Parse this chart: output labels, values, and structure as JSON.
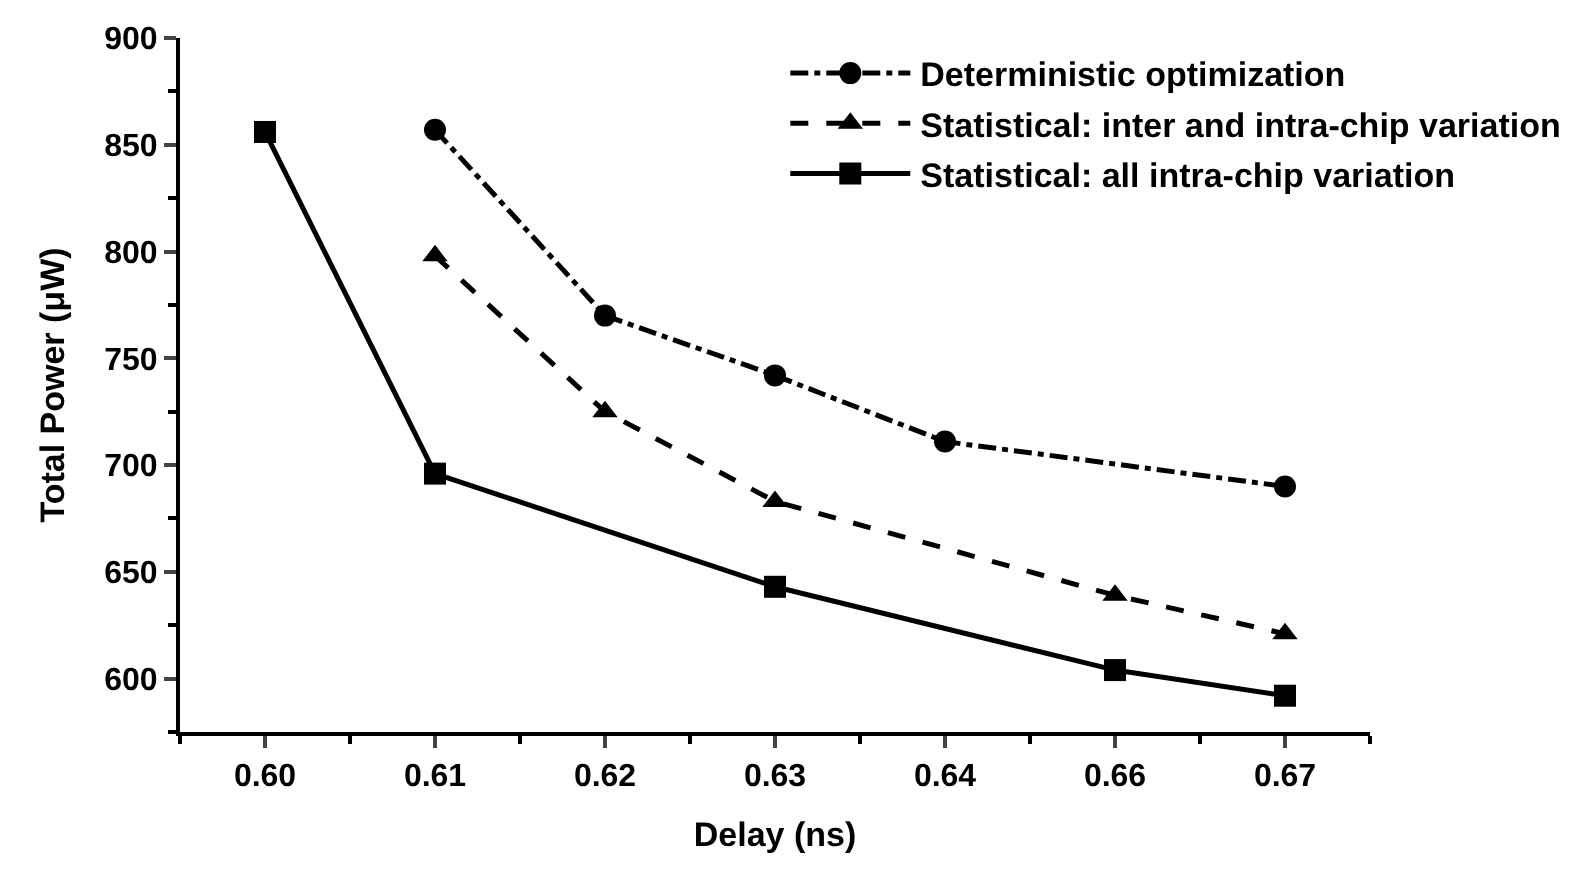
{
  "chart_data": {
    "type": "line",
    "xlabel": "Delay (ns)",
    "ylabel": "Total Power (μW)",
    "categories": [
      "0.60",
      "0.61",
      "0.62",
      "0.63",
      "0.64",
      "0.66",
      "0.67"
    ],
    "ylim": [
      575,
      900
    ],
    "yticks": [
      600,
      650,
      700,
      750,
      800,
      850,
      900
    ],
    "legend": "top right",
    "series": [
      {
        "name": "Deterministic optimization",
        "color": "#000000",
        "marker": "circle",
        "line_style": "dashdot",
        "values": [
          null,
          857,
          770,
          742,
          711,
          null,
          690
        ]
      },
      {
        "name": "Statistical: inter and intra-chip variation",
        "color": "#000000",
        "marker": "triangle",
        "line_style": "dashed",
        "values": [
          null,
          798,
          725,
          683,
          null,
          639,
          621
        ]
      },
      {
        "name": "Statistical: all intra-chip variation",
        "color": "#000000",
        "marker": "square",
        "line_style": "solid",
        "values": [
          856,
          696,
          null,
          643,
          null,
          604,
          592
        ]
      }
    ]
  }
}
